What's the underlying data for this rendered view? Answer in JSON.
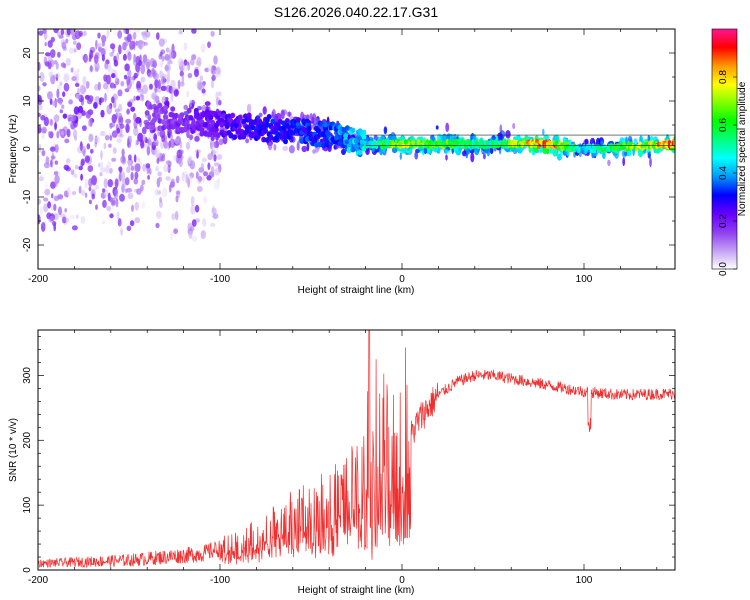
{
  "title": "S126.2026.040.22.17.G31",
  "chart_data": [
    {
      "type": "heatmap",
      "xlabel": "Height of straight line (km)",
      "ylabel": "Frequency (Hz)",
      "xlim": [
        -200,
        150
      ],
      "ylim": [
        -25,
        25
      ],
      "x_ticks": [
        -200,
        -100,
        0,
        100
      ],
      "y_ticks": [
        -20,
        -10,
        0,
        10,
        20
      ],
      "colorbar": {
        "label": "Normalized spectral amplitude",
        "range": [
          0,
          1
        ],
        "ticks": [
          "0.0",
          "0.2",
          "0.4",
          "0.6",
          "0.8"
        ],
        "colors": [
          "#ffffff",
          "#c3a0f4",
          "#8f3df1",
          "#6600ff",
          "#0000ff",
          "#0099ff",
          "#00ffff",
          "#00ff7f",
          "#00ff00",
          "#7fff00",
          "#ffff00",
          "#ff9900",
          "#ff0000",
          "#ff1493"
        ]
      },
      "ridge": [
        {
          "x": -160,
          "f": 8.0,
          "amp": 0.1
        },
        {
          "x": -120,
          "f": 6.0,
          "amp": 0.2
        },
        {
          "x": -80,
          "f": 4.5,
          "amp": 0.3
        },
        {
          "x": -40,
          "f": 3.0,
          "amp": 0.35
        },
        {
          "x": -20,
          "f": 1.0,
          "amp": 0.5
        },
        {
          "x": 0,
          "f": 1.0,
          "amp": 0.75
        },
        {
          "x": 50,
          "f": 1.0,
          "amp": 0.55
        },
        {
          "x": 80,
          "f": 1.0,
          "amp": 0.95
        },
        {
          "x": 100,
          "f": 0.0,
          "amp": 0.45
        },
        {
          "x": 150,
          "f": 1.0,
          "amp": 0.9
        }
      ]
    },
    {
      "type": "line",
      "xlabel": "Height of straight line (km)",
      "ylabel": "SNR (10 * v/v)",
      "xlim": [
        -200,
        150
      ],
      "ylim": [
        0,
        370
      ],
      "x_ticks": [
        -200,
        -100,
        0,
        100
      ],
      "y_ticks": [
        0,
        100,
        200,
        300
      ],
      "color": "#f03030",
      "envelope": [
        {
          "x": -200,
          "snr": 10
        },
        {
          "x": -150,
          "snr": 15
        },
        {
          "x": -110,
          "snr": 25
        },
        {
          "x": -80,
          "snr": 50
        },
        {
          "x": -60,
          "snr": 80
        },
        {
          "x": -40,
          "snr": 100
        },
        {
          "x": -25,
          "snr": 130
        },
        {
          "x": -15,
          "snr": 170
        },
        {
          "x": -5,
          "snr": 160
        },
        {
          "x": 0,
          "snr": 180
        },
        {
          "x": 10,
          "snr": 235
        },
        {
          "x": 20,
          "snr": 270
        },
        {
          "x": 30,
          "snr": 290
        },
        {
          "x": 40,
          "snr": 300
        },
        {
          "x": 50,
          "snr": 300
        },
        {
          "x": 60,
          "snr": 295
        },
        {
          "x": 80,
          "snr": 285
        },
        {
          "x": 100,
          "snr": 275
        },
        {
          "x": 120,
          "snr": 270
        },
        {
          "x": 150,
          "snr": 272
        }
      ],
      "spike_max": [
        -18,
        370
      ]
    }
  ]
}
